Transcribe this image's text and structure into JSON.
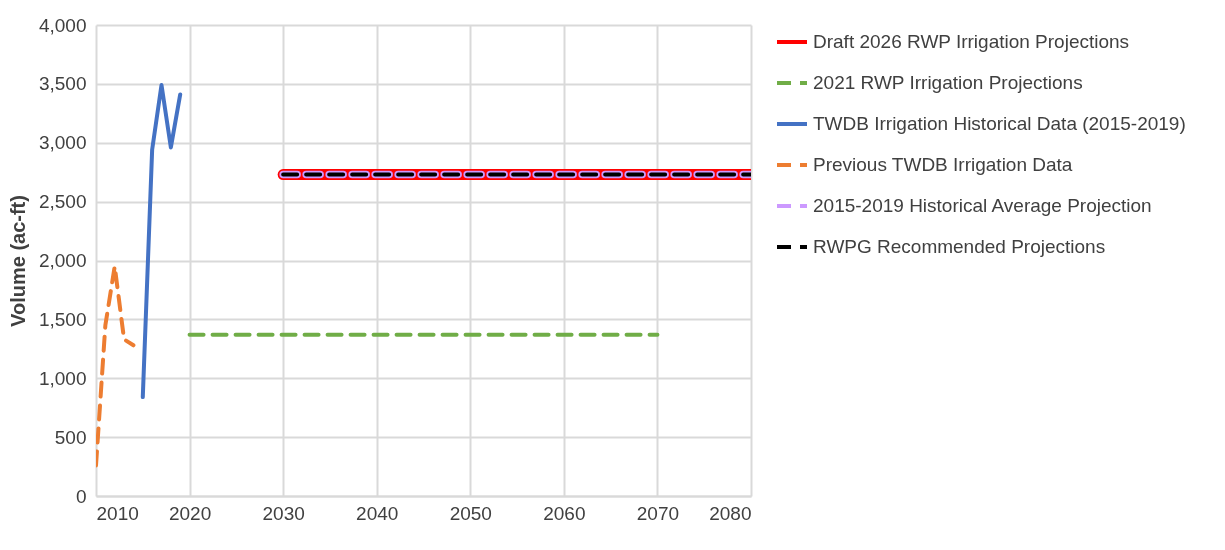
{
  "chart_data": {
    "type": "line",
    "ylabel": "Volume (ac-ft)",
    "xlim": [
      2010,
      2080
    ],
    "xticks": [
      2010,
      2020,
      2030,
      2040,
      2050,
      2060,
      2070,
      2080
    ],
    "ylim": [
      0,
      4000
    ],
    "yticks": [
      0,
      500,
      {
        "value": 1000,
        "label": "1,000"
      },
      {
        "value": 1500,
        "label": "1,500"
      },
      {
        "value": 2000,
        "label": "2,000"
      },
      {
        "value": 2500,
        "label": "2,500"
      },
      {
        "value": 3000,
        "label": "3,000"
      },
      {
        "value": 3500,
        "label": "3,500"
      },
      {
        "value": 4000,
        "label": "4,000"
      }
    ],
    "grid": true,
    "legend": "right",
    "marker": "none",
    "series": [
      {
        "name": "Draft 2026 RWP Irrigation Projections",
        "color": "#ff0000",
        "line_style": "solid",
        "x": [
          2030,
          2040,
          2050,
          2060,
          2070,
          2080
        ],
        "values": [
          2730,
          2730,
          2730,
          2730,
          2730,
          2730
        ]
      },
      {
        "name": "2021 RWP Irrigation Projections",
        "color": "#70ad47",
        "line_style": "dashed",
        "x": [
          2020,
          2030,
          2040,
          2050,
          2060,
          2070
        ],
        "values": [
          1370,
          1370,
          1370,
          1370,
          1370,
          1370
        ]
      },
      {
        "name": "TWDB Irrigation Historical Data (2015-2019)",
        "color": "#4472c4",
        "line_style": "solid",
        "x": [
          2015,
          2016,
          2017,
          2018,
          2019
        ],
        "values": [
          840,
          2940,
          3490,
          2960,
          3410
        ]
      },
      {
        "name": "Previous TWDB Irrigation Data",
        "color": "#ed7d31",
        "line_style": "dashed",
        "x": [
          2010,
          2011,
          2012,
          2013,
          2014
        ],
        "values": [
          260,
          1450,
          1950,
          1330,
          1280
        ]
      },
      {
        "name": "2015-2019 Historical Average Projection",
        "color": "#cc99ff",
        "line_style": "dashed",
        "x": [
          2030,
          2040,
          2050,
          2060,
          2070,
          2080
        ],
        "values": [
          2730,
          2730,
          2730,
          2730,
          2730,
          2730
        ]
      },
      {
        "name": "RWPG Recommended Projections",
        "color": "#000000",
        "line_style": "dashed",
        "x": [
          2030,
          2040,
          2050,
          2060,
          2070,
          2080
        ],
        "values": [
          2730,
          2730,
          2730,
          2730,
          2730,
          2730
        ]
      }
    ]
  }
}
